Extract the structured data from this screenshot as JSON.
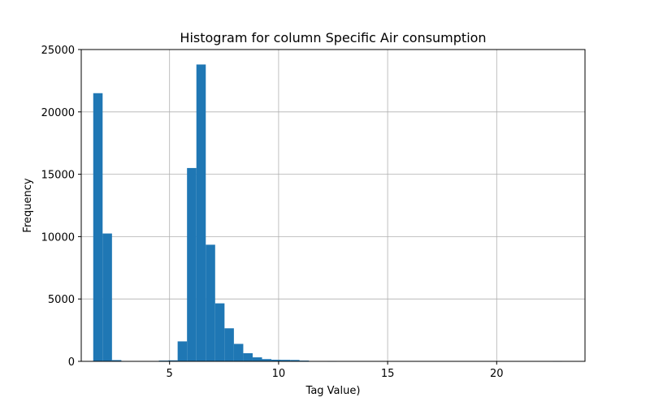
{
  "chart_data": {
    "type": "bar",
    "title": "Histogram for column Specific Air consumption",
    "xlabel": "Tag Value)",
    "ylabel": "Frequency",
    "xlim": [
      0.95,
      24.05
    ],
    "ylim": [
      0,
      25000
    ],
    "grid": true,
    "bar_color": "#1f77b4",
    "bin_start": 1.5,
    "bin_width": 0.43,
    "values": [
      21500,
      10250,
      100,
      0,
      0,
      0,
      0,
      60,
      80,
      1600,
      15500,
      23800,
      9350,
      4650,
      2650,
      1400,
      650,
      320,
      180,
      130,
      120,
      110,
      60,
      20,
      10,
      5,
      0,
      0,
      0,
      0,
      0,
      0,
      0,
      0,
      0,
      0,
      0,
      0,
      0,
      0,
      0,
      0,
      0,
      0,
      0,
      0,
      0,
      0,
      0,
      5
    ],
    "x_ticks": [
      5,
      10,
      15,
      20
    ],
    "y_ticks": [
      0,
      5000,
      10000,
      15000,
      20000,
      25000
    ]
  }
}
